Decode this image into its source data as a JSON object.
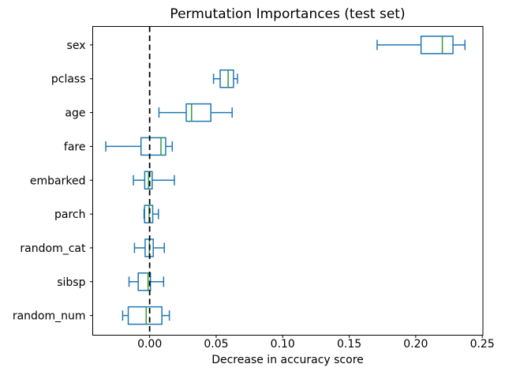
{
  "chart_data": {
    "type": "boxplot",
    "orientation": "horizontal",
    "title": "Permutation Importances (test set)",
    "xlabel": "Decrease in accuracy score",
    "ylabel": "",
    "grid": false,
    "legend": false,
    "xlim": [
      -0.0428,
      0.2505
    ],
    "xticks": [
      0.0,
      0.05,
      0.1,
      0.15,
      0.2,
      0.25
    ],
    "xtick_labels": [
      "0.00",
      "0.05",
      "0.10",
      "0.15",
      "0.20",
      "0.25"
    ],
    "zero_line": {
      "x": 0,
      "style": "dashed",
      "color": "#000000"
    },
    "colors": {
      "box": "#1f77b4",
      "whisker": "#1f77b4",
      "cap": "#1f77b4",
      "median": "#2ca02c",
      "axis": "#000000",
      "background": "#ffffff"
    },
    "categories": [
      "sex",
      "pclass",
      "age",
      "fare",
      "embarked",
      "parch",
      "random_cat",
      "sibsp",
      "random_num"
    ],
    "series": [
      {
        "name": "sex",
        "whislo": 0.171,
        "q1": 0.204,
        "med": 0.22,
        "q3": 0.228,
        "whishi": 0.237
      },
      {
        "name": "pclass",
        "whislo": 0.048,
        "q1": 0.053,
        "med": 0.059,
        "q3": 0.063,
        "whishi": 0.066
      },
      {
        "name": "age",
        "whislo": 0.007,
        "q1": 0.0275,
        "med": 0.0315,
        "q3": 0.046,
        "whishi": 0.062
      },
      {
        "name": "fare",
        "whislo": -0.033,
        "q1": -0.0065,
        "med": 0.0085,
        "q3": 0.012,
        "whishi": 0.017
      },
      {
        "name": "embarked",
        "whislo": -0.0122,
        "q1": -0.0037,
        "med": -0.0008,
        "q3": 0.0019,
        "whishi": 0.0186
      },
      {
        "name": "parch",
        "whislo": -0.0042,
        "q1": -0.0038,
        "med": -0.0004,
        "q3": 0.0023,
        "whishi": 0.0066
      },
      {
        "name": "random_cat",
        "whislo": -0.0114,
        "q1": -0.0034,
        "med": -0.0002,
        "q3": 0.0027,
        "whishi": 0.011
      },
      {
        "name": "sibsp",
        "whislo": -0.0155,
        "q1": -0.0086,
        "med": -0.0012,
        "q3": 0.0006,
        "whishi": 0.0105
      },
      {
        "name": "random_num",
        "whislo": -0.0203,
        "q1": -0.0161,
        "med": -0.0026,
        "q3": 0.0092,
        "whishi": 0.0148
      }
    ]
  }
}
